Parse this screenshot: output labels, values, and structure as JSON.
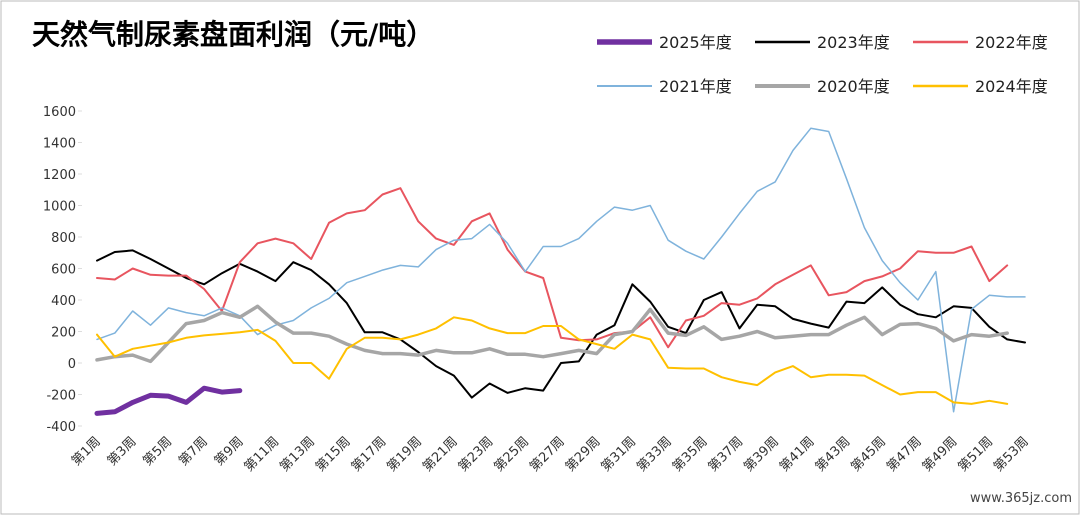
{
  "chart_data": {
    "type": "line",
    "title": "天然气制尿素盘面利润（元/吨）",
    "categories": [
      "第1周",
      null,
      "第3周",
      null,
      "第5周",
      null,
      "第7周",
      null,
      "第9周",
      null,
      "第11周",
      null,
      "第13周",
      null,
      "第15周",
      null,
      "第17周",
      null,
      "第19周",
      null,
      "第21周",
      null,
      "第23周",
      null,
      "第25周",
      null,
      "第27周",
      null,
      "第29周",
      null,
      "第31周",
      null,
      "第33周",
      null,
      "第35周",
      null,
      "第37周",
      null,
      "第39周",
      null,
      "第41周",
      null,
      "第43周",
      null,
      "第45周",
      null,
      "第47周",
      null,
      "第49周",
      null,
      "第51周",
      null,
      "第53周"
    ],
    "ylim": [
      -400,
      1600
    ],
    "yticks": [
      -400,
      -200,
      0,
      200,
      400,
      600,
      800,
      1000,
      1200,
      1400,
      1600
    ],
    "series": [
      {
        "name": "2025年度",
        "color": "#7030a0",
        "width": 5,
        "values": [
          -320,
          -310,
          -250,
          -205,
          -210,
          -250,
          -160,
          -185,
          -175,
          null,
          null,
          null,
          null,
          null,
          null,
          null,
          null,
          null,
          null,
          null,
          null,
          null,
          null,
          null,
          null,
          null,
          null,
          null,
          null,
          null,
          null,
          null,
          null,
          null,
          null,
          null,
          null,
          null,
          null,
          null,
          null,
          null,
          null,
          null,
          null,
          null,
          null,
          null,
          null,
          null,
          null,
          null,
          null
        ]
      },
      {
        "name": "2023年度",
        "color": "#000000",
        "width": 2,
        "values": [
          650,
          705,
          715,
          660,
          600,
          540,
          500,
          570,
          630,
          580,
          520,
          640,
          590,
          500,
          380,
          195,
          195,
          150,
          70,
          -20,
          -80,
          -220,
          -130,
          -190,
          -160,
          -175,
          0,
          10,
          180,
          240,
          500,
          390,
          230,
          190,
          400,
          450,
          220,
          370,
          360,
          280,
          250,
          225,
          390,
          380,
          480,
          370,
          310,
          290,
          360,
          350,
          230,
          150,
          130
        ]
      },
      {
        "name": "2022年度",
        "color": "#e8555f",
        "width": 2,
        "values": [
          540,
          530,
          600,
          560,
          555,
          555,
          470,
          330,
          640,
          760,
          790,
          760,
          660,
          890,
          950,
          970,
          1070,
          1110,
          900,
          790,
          750,
          900,
          950,
          720,
          580,
          540,
          160,
          145,
          150,
          190,
          200,
          290,
          100,
          270,
          300,
          380,
          370,
          410,
          500,
          560,
          620,
          430,
          450,
          520,
          550,
          600,
          710,
          700,
          700,
          740,
          520,
          620,
          null
        ]
      },
      {
        "name": "2021年度",
        "color": "#7fb3dc",
        "width": 1.5,
        "values": [
          150,
          190,
          330,
          240,
          350,
          320,
          300,
          350,
          300,
          180,
          240,
          270,
          350,
          410,
          510,
          550,
          590,
          620,
          610,
          720,
          780,
          790,
          880,
          760,
          580,
          740,
          740,
          790,
          900,
          990,
          970,
          1000,
          780,
          710,
          660,
          800,
          950,
          1090,
          1150,
          1350,
          1490,
          1470,
          1170,
          860,
          650,
          510,
          400,
          580,
          -310,
          340,
          430,
          420,
          420
        ]
      },
      {
        "name": "2020年度",
        "color": "#a6a6a6",
        "width": 3.5,
        "values": [
          20,
          40,
          50,
          10,
          130,
          250,
          270,
          320,
          290,
          360,
          260,
          190,
          190,
          170,
          120,
          80,
          60,
          60,
          50,
          80,
          65,
          65,
          90,
          55,
          55,
          40,
          60,
          80,
          60,
          180,
          200,
          340,
          190,
          175,
          230,
          150,
          170,
          200,
          160,
          170,
          180,
          180,
          240,
          290,
          180,
          245,
          250,
          220,
          140,
          180,
          170,
          190,
          null
        ]
      },
      {
        "name": "2024年度",
        "color": "#ffc000",
        "width": 2,
        "values": [
          180,
          40,
          90,
          110,
          130,
          160,
          175,
          185,
          195,
          210,
          140,
          0,
          0,
          -100,
          90,
          160,
          160,
          150,
          180,
          220,
          290,
          270,
          220,
          190,
          190,
          235,
          235,
          150,
          120,
          90,
          180,
          150,
          -30,
          -35,
          -35,
          -90,
          -120,
          -140,
          -60,
          -20,
          -90,
          -75,
          -75,
          -80,
          -140,
          -200,
          -185,
          -185,
          -250,
          -260,
          -240,
          -260,
          null
        ]
      }
    ]
  },
  "watermark": "www.365jz.com"
}
